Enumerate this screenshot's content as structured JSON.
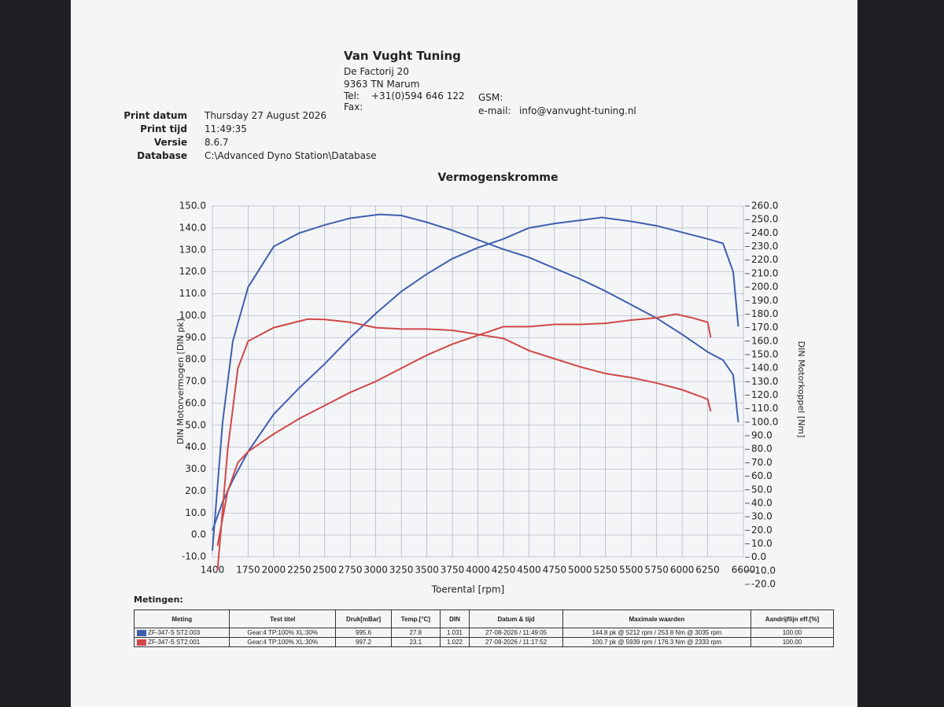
{
  "header": {
    "company": "Van Vught Tuning",
    "street": "De Factorij 20",
    "city": "9363 TN Marum",
    "tel_label": "Tel:",
    "tel": "+31(0)594 646 122",
    "fax_label": "Fax:",
    "gsm_label": "GSM:",
    "email_label": "e-mail:",
    "email": "info@vanvught-tuning.nl"
  },
  "print_info": [
    {
      "label": "Print datum",
      "value": "Thursday 27 August 2026"
    },
    {
      "label": "Print tijd",
      "value": "11:49:35"
    },
    {
      "label": "Versie",
      "value": "8.6.7"
    },
    {
      "label": "Database",
      "value": "C:\\Advanced Dyno Station\\Database"
    }
  ],
  "chart_data": {
    "type": "line",
    "title": "Vermogenskromme",
    "xlabel": "Toerental [rpm]",
    "ylabel": "DIN Motorvermogen [DIN pk]",
    "y2label": "DIN Motorkoppel [Nm]",
    "grid": true,
    "xlim": [
      1400,
      6600
    ],
    "xticks": [
      1400,
      1750,
      2000,
      2250,
      2500,
      2750,
      3000,
      3250,
      3500,
      3750,
      4000,
      4250,
      4500,
      4750,
      5000,
      5250,
      5500,
      5750,
      6000,
      6250,
      6600
    ],
    "ylim": [
      -10,
      150
    ],
    "yticks": [
      {
        "value": -10,
        "label": "-10.0"
      },
      {
        "value": 0,
        "label": "0.0"
      },
      {
        "value": 10,
        "label": "10.0"
      },
      {
        "value": 20,
        "label": "20.0"
      },
      {
        "value": 30,
        "label": "30.0"
      },
      {
        "value": 40,
        "label": "40.0"
      },
      {
        "value": 50,
        "label": "50.0"
      },
      {
        "value": 60,
        "label": "60.0"
      },
      {
        "value": 70,
        "label": "70.0"
      },
      {
        "value": 80,
        "label": "80.0"
      },
      {
        "value": 90,
        "label": "90.0"
      },
      {
        "value": 100,
        "label": "100.0"
      },
      {
        "value": 110,
        "label": "110.0"
      },
      {
        "value": 120,
        "label": "120.0"
      },
      {
        "value": 130,
        "label": "130.0"
      },
      {
        "value": 140,
        "label": "140.0"
      },
      {
        "value": 150,
        "label": "150.0"
      }
    ],
    "y2lim": [
      -20,
      260
    ],
    "y2ticks": [
      {
        "value": -20,
        "label": "-20.0"
      },
      {
        "value": -10,
        "label": "-10.0"
      },
      {
        "value": 0,
        "label": "0.0"
      },
      {
        "value": 10,
        "label": "10.0"
      },
      {
        "value": 20,
        "label": "20.0"
      },
      {
        "value": 30,
        "label": "30.0"
      },
      {
        "value": 40,
        "label": "40.0"
      },
      {
        "value": 50,
        "label": "50.0"
      },
      {
        "value": 60,
        "label": "60.0"
      },
      {
        "value": 70,
        "label": "70.0"
      },
      {
        "value": 80,
        "label": "80.0"
      },
      {
        "value": 90,
        "label": "90.0"
      },
      {
        "value": 100,
        "label": "100.0"
      },
      {
        "value": 110,
        "label": "110.0"
      },
      {
        "value": 120,
        "label": "120.0"
      },
      {
        "value": 130,
        "label": "130.0"
      },
      {
        "value": 140,
        "label": "140.0"
      },
      {
        "value": 150,
        "label": "150.0"
      },
      {
        "value": 160,
        "label": "160.0"
      },
      {
        "value": 170,
        "label": "170.0"
      },
      {
        "value": 180,
        "label": "180.0"
      },
      {
        "value": 190,
        "label": "190.0"
      },
      {
        "value": 200,
        "label": "200.0"
      },
      {
        "value": 210,
        "label": "210.0"
      },
      {
        "value": 220,
        "label": "220.0"
      },
      {
        "value": 230,
        "label": "230.0"
      },
      {
        "value": 240,
        "label": "240.0"
      },
      {
        "value": 250,
        "label": "250.0"
      },
      {
        "value": 260,
        "label": "260.0"
      }
    ],
    "series": [
      {
        "color": "#3f5fae",
        "axis": "y",
        "x": [
          1400,
          1500,
          1600,
          1750,
          2000,
          2250,
          2500,
          2750,
          3000,
          3250,
          3500,
          3750,
          4000,
          4250,
          4500,
          4750,
          5000,
          5212,
          5500,
          5750,
          6000,
          6250,
          6400,
          6500,
          6550
        ],
        "values": [
          2,
          15,
          25,
          38,
          55,
          67,
          78,
          90,
          101,
          111,
          119,
          126,
          131,
          135,
          140,
          142,
          143.5,
          144.8,
          143,
          141,
          138,
          135,
          133,
          120,
          95
        ]
      },
      {
        "color": "#3f5fae",
        "axis": "y2",
        "x": [
          1400,
          1500,
          1600,
          1750,
          2000,
          2250,
          2500,
          2750,
          3035,
          3250,
          3500,
          3750,
          4000,
          4250,
          4500,
          4750,
          5000,
          5250,
          5500,
          5750,
          6000,
          6250,
          6400,
          6500,
          6550
        ],
        "values": [
          5,
          100,
          160,
          200,
          230,
          240,
          246,
          251,
          253.8,
          253,
          248,
          242,
          235,
          228,
          222,
          214,
          206,
          197,
          187,
          177,
          165,
          152,
          146,
          135,
          100
        ]
      },
      {
        "color": "#d04848",
        "axis": "y",
        "x": [
          1450,
          1550,
          1650,
          1750,
          2000,
          2250,
          2500,
          2750,
          3000,
          3250,
          3500,
          3750,
          4000,
          4250,
          4500,
          4750,
          5000,
          5250,
          5500,
          5750,
          5939,
          6100,
          6250,
          6280
        ],
        "values": [
          -5,
          20,
          33,
          38,
          46,
          53,
          59,
          65,
          70,
          76,
          82,
          87,
          91,
          95,
          95,
          96,
          96,
          96.5,
          98,
          99,
          100.7,
          99,
          97,
          90
        ]
      },
      {
        "color": "#d04848",
        "axis": "y2",
        "x": [
          1450,
          1550,
          1650,
          1750,
          2000,
          2333,
          2500,
          2750,
          3000,
          3250,
          3500,
          3750,
          4000,
          4250,
          4500,
          4750,
          5000,
          5250,
          5500,
          5750,
          6000,
          6250,
          6280
        ],
        "values": [
          -10,
          80,
          140,
          160,
          170,
          176.3,
          176,
          174,
          170,
          169,
          169,
          168,
          165,
          162,
          153,
          147,
          141,
          136,
          133,
          129,
          124,
          117,
          108
        ]
      }
    ]
  },
  "table": {
    "caption": "Metingen:",
    "headers": [
      "Meting",
      "Test titel",
      "Druk[mBar]",
      "Temp.[°C]",
      "DIN",
      "Datum & tijd",
      "Maximale waarden",
      "Aandrijflijn eff.[%]"
    ],
    "rows": [
      [
        "ZF-347-S ST2.003",
        "Gear:4 TP:100% XL:30%",
        "995.6",
        "27.8",
        "1.031",
        "27-08-2026 / 11:49:05",
        "144.8 pk @ 5212 rpm / 253.8 Nm @ 3035 rpm",
        "100.00"
      ],
      [
        "ZF-347-S ST2.001",
        "Gear:4 TP:100% XL:30%",
        "997.2",
        "23.1",
        "1.022",
        "27-08-2026 / 11:17:52",
        "100.7 pk @ 5939 rpm / 176.3 Nm @ 2333 rpm",
        "100.00"
      ]
    ]
  }
}
